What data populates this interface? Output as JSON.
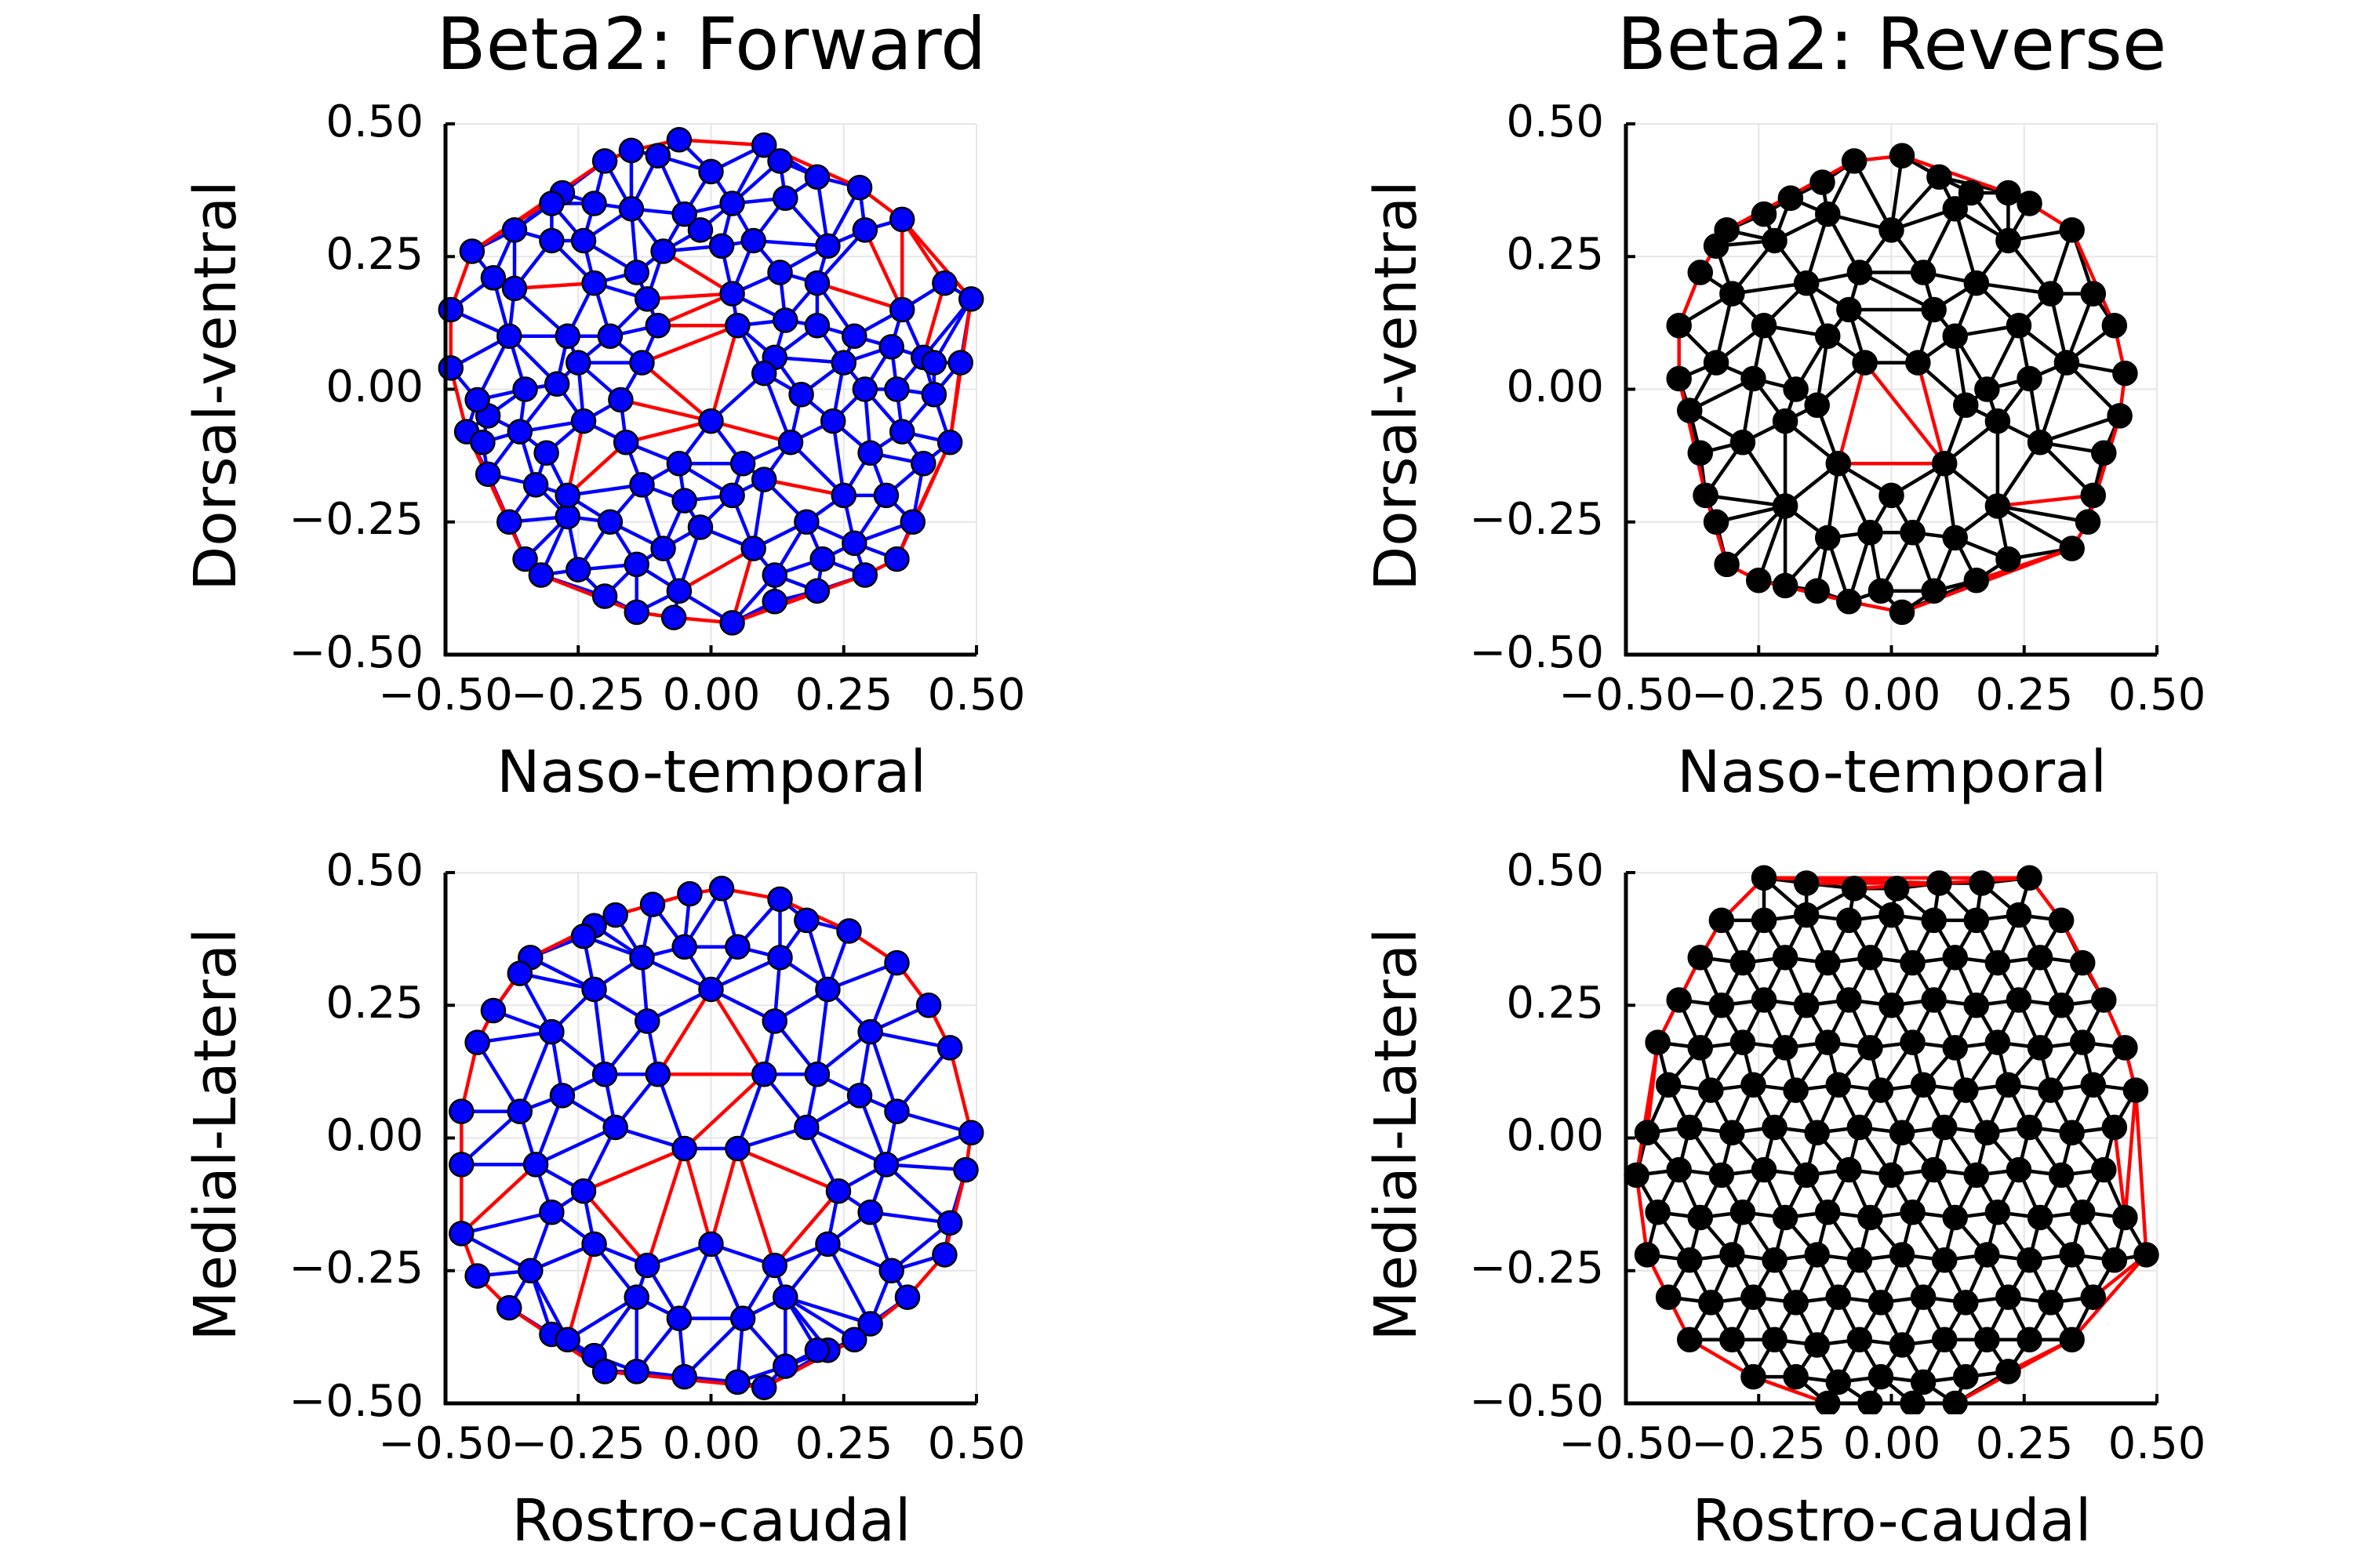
{
  "colors": {
    "boundary_edge": "#ff0000",
    "forward_edge": "#0000ff",
    "forward_node": "#0000ff",
    "reverse_edge": "#000000",
    "reverse_node": "#000000",
    "grid": "#e6e6e6"
  },
  "chart_data": [
    {
      "type": "scatter",
      "variant": "triangulated-mesh",
      "title": "Beta2: Forward",
      "xlabel": "Naso-temporal",
      "ylabel": "Dorsal-ventral",
      "xlim": [
        -0.5,
        0.5
      ],
      "ylim": [
        -0.5,
        0.5
      ],
      "xticks": [
        "−0.50",
        "−0.25",
        "0.00",
        "0.25",
        "0.50"
      ],
      "yticks": [
        "−0.50",
        "−0.25",
        "0.00",
        "0.25",
        "0.50"
      ],
      "grid": true,
      "legend": "none",
      "node_color": "blue",
      "edge_color": "blue",
      "boundary_color": "red",
      "points": {
        "x": [
          -0.06,
          0.1,
          -0.15,
          -0.1,
          0.13,
          -0.2,
          0.0,
          0.2,
          -0.28,
          0.28,
          -0.37,
          -0.3,
          0.36,
          -0.45,
          -0.41,
          0.44,
          -0.49,
          0.49,
          -0.49,
          0.47,
          -0.46,
          0.42,
          -0.42,
          0.4,
          -0.37,
          0.36,
          -0.33,
          -0.27,
          0.33,
          -0.25,
          0.27,
          -0.2,
          0.2,
          -0.14,
          0.12,
          -0.07,
          0.04,
          -0.14,
          -0.06,
          0.12,
          0.21,
          -0.02,
          -0.22,
          0.29,
          -0.3,
          -0.38,
          0.34,
          -0.42,
          0.4,
          0.42,
          -0.44,
          -0.43,
          0.45,
          -0.38,
          0.38,
          -0.35,
          0.35,
          -0.32,
          0.29,
          -0.24,
          0.22,
          -0.15,
          0.14,
          0.04,
          -0.05,
          -0.22,
          0.2,
          -0.09,
          0.02,
          0.08,
          -0.14,
          0.13,
          -0.27,
          0.27,
          -0.35,
          0.35,
          -0.36,
          0.36,
          -0.31,
          0.3,
          -0.27,
          0.25,
          -0.19,
          0.18,
          -0.09,
          0.08,
          -0.02,
          0.04,
          -0.12,
          0.14,
          -0.19,
          0.2,
          -0.25,
          0.25,
          -0.29,
          0.29,
          -0.24,
          0.23,
          -0.16,
          0.15,
          -0.06,
          0.06,
          0.0,
          -0.13,
          0.12,
          -0.17,
          0.17,
          -0.13,
          0.1,
          -0.05,
          0.04,
          -0.1,
          0.05,
          0.1
        ],
        "y": [
          0.47,
          0.46,
          0.45,
          0.44,
          0.43,
          0.43,
          0.41,
          0.4,
          0.37,
          0.38,
          0.3,
          0.35,
          0.32,
          0.26,
          0.21,
          0.2,
          0.15,
          0.17,
          0.04,
          0.05,
          -0.08,
          -0.01,
          -0.05,
          0.06,
          0.19,
          0.15,
          -0.18,
          -0.24,
          -0.2,
          -0.34,
          -0.29,
          -0.39,
          -0.38,
          -0.42,
          -0.4,
          -0.43,
          -0.44,
          -0.33,
          -0.38,
          -0.35,
          -0.32,
          0.3,
          0.35,
          0.3,
          0.28,
          0.1,
          0.08,
          -0.16,
          -0.14,
          0.05,
          -0.02,
          -0.1,
          -0.1,
          -0.25,
          -0.25,
          -0.32,
          -0.32,
          -0.35,
          -0.35,
          0.28,
          0.27,
          0.34,
          0.36,
          0.35,
          0.33,
          0.2,
          0.2,
          0.26,
          0.27,
          0.28,
          0.22,
          0.22,
          0.1,
          0.1,
          0.0,
          0.0,
          -0.08,
          -0.08,
          -0.12,
          -0.12,
          -0.2,
          -0.2,
          -0.25,
          -0.25,
          -0.3,
          -0.3,
          -0.26,
          0.18,
          0.17,
          0.13,
          0.1,
          0.12,
          0.05,
          0.05,
          0.01,
          0.0,
          -0.06,
          -0.06,
          -0.1,
          -0.1,
          -0.14,
          -0.14,
          -0.06,
          0.05,
          0.06,
          -0.02,
          -0.01,
          -0.18,
          -0.17,
          -0.21,
          -0.2,
          0.12,
          0.12,
          0.03
        ]
      }
    },
    {
      "type": "scatter",
      "variant": "triangulated-mesh",
      "title": "Beta2: Reverse",
      "xlabel": "Naso-temporal",
      "ylabel": "Dorsal-ventral",
      "xlim": [
        -0.5,
        0.5
      ],
      "ylim": [
        -0.5,
        0.5
      ],
      "xticks": [
        "−0.50",
        "−0.25",
        "0.00",
        "0.25",
        "0.50"
      ],
      "yticks": [
        "−0.50",
        "−0.25",
        "0.00",
        "0.25",
        "0.50"
      ],
      "grid": true,
      "legend": "none",
      "node_color": "black",
      "edge_color": "black",
      "boundary_color": "red",
      "points": {
        "x": [
          0.02,
          -0.07,
          0.09,
          -0.13,
          0.15,
          -0.19,
          0.22,
          -0.24,
          0.26,
          -0.31,
          -0.33,
          -0.36,
          0.34,
          0.38,
          -0.4,
          0.42,
          -0.4,
          0.44,
          -0.38,
          0.43,
          -0.36,
          0.4,
          -0.35,
          0.38,
          -0.33,
          0.37,
          -0.31,
          0.34,
          -0.25,
          0.22,
          -0.2,
          0.16,
          -0.14,
          0.08,
          -0.08,
          0.02,
          -0.02,
          -0.12,
          0.12,
          -0.2,
          0.2,
          -0.28,
          0.28,
          -0.33,
          0.33,
          -0.3,
          0.3,
          -0.22,
          0.22,
          -0.12,
          0.12,
          0.0,
          -0.06,
          0.06,
          -0.16,
          0.16,
          -0.24,
          0.24,
          -0.26,
          0.26,
          -0.2,
          0.2,
          -0.1,
          0.1,
          0.0,
          -0.04,
          0.04,
          -0.12,
          0.12,
          -0.18,
          0.18,
          -0.14,
          0.14,
          -0.05,
          0.05,
          -0.08,
          0.08
        ],
        "y": [
          0.44,
          0.43,
          0.4,
          0.39,
          0.37,
          0.36,
          0.37,
          0.33,
          0.35,
          0.3,
          0.27,
          0.22,
          0.3,
          0.18,
          0.12,
          0.12,
          0.02,
          0.03,
          -0.04,
          -0.05,
          -0.12,
          -0.12,
          -0.2,
          -0.2,
          -0.25,
          -0.25,
          -0.33,
          -0.3,
          -0.36,
          -0.32,
          -0.37,
          -0.36,
          -0.38,
          -0.38,
          -0.4,
          -0.42,
          -0.38,
          -0.28,
          -0.28,
          -0.22,
          -0.22,
          -0.1,
          -0.1,
          0.05,
          0.05,
          0.18,
          0.18,
          0.28,
          0.28,
          0.33,
          0.34,
          0.3,
          0.22,
          0.22,
          0.2,
          0.2,
          0.12,
          0.12,
          0.02,
          0.02,
          -0.06,
          -0.06,
          -0.14,
          -0.14,
          -0.2,
          -0.27,
          -0.27,
          0.1,
          0.1,
          0.0,
          0.0,
          -0.03,
          -0.03,
          0.05,
          0.05,
          0.15,
          0.15
        ]
      }
    },
    {
      "type": "scatter",
      "variant": "triangulated-mesh",
      "title": "",
      "xlabel": "Rostro-caudal",
      "ylabel": "Medial-Lateral",
      "xlim": [
        -0.5,
        0.5
      ],
      "ylim": [
        -0.5,
        0.5
      ],
      "xticks": [
        "−0.50",
        "−0.25",
        "0.00",
        "0.25",
        "0.50"
      ],
      "yticks": [
        "−0.50",
        "−0.25",
        "0.00",
        "0.25",
        "0.50"
      ],
      "grid": true,
      "legend": "none",
      "node_color": "blue",
      "edge_color": "blue",
      "boundary_color": "red",
      "points": {
        "x": [
          0.02,
          -0.04,
          0.13,
          -0.11,
          0.18,
          -0.18,
          -0.22,
          0.26,
          -0.24,
          0.35,
          -0.34,
          -0.36,
          0.41,
          -0.41,
          0.45,
          -0.44,
          0.49,
          -0.47,
          0.48,
          -0.47,
          0.45,
          -0.47,
          0.44,
          -0.44,
          0.37,
          -0.38,
          0.3,
          -0.3,
          0.22,
          -0.22,
          0.14,
          -0.14,
          0.05,
          -0.05,
          0.1,
          -0.2,
          0.2,
          -0.27,
          0.27,
          -0.34,
          0.34,
          -0.36,
          0.35,
          -0.3,
          0.3,
          -0.22,
          0.22,
          -0.13,
          0.13,
          -0.05,
          0.05,
          0.0,
          -0.12,
          0.12,
          -0.2,
          0.2,
          -0.28,
          0.28,
          -0.33,
          0.33,
          -0.3,
          0.3,
          -0.22,
          0.22,
          -0.14,
          0.14,
          -0.06,
          0.06,
          -0.1,
          0.1,
          -0.18,
          0.18,
          -0.24,
          0.24,
          -0.05,
          0.05,
          0.0,
          -0.12,
          0.12
        ],
        "y": [
          0.47,
          0.46,
          0.45,
          0.44,
          0.41,
          0.42,
          0.4,
          0.39,
          0.38,
          0.33,
          0.34,
          0.31,
          0.25,
          0.24,
          0.17,
          0.18,
          0.01,
          0.05,
          -0.06,
          -0.05,
          -0.16,
          -0.18,
          -0.22,
          -0.26,
          -0.3,
          -0.32,
          -0.35,
          -0.37,
          -0.4,
          -0.41,
          -0.43,
          -0.44,
          -0.46,
          -0.45,
          -0.47,
          -0.44,
          -0.4,
          -0.38,
          -0.38,
          -0.25,
          -0.25,
          0.05,
          0.05,
          0.2,
          0.2,
          0.28,
          0.28,
          0.34,
          0.34,
          0.36,
          0.36,
          0.28,
          0.22,
          0.22,
          0.12,
          0.12,
          0.08,
          0.08,
          -0.05,
          -0.05,
          -0.14,
          -0.14,
          -0.2,
          -0.2,
          -0.3,
          -0.3,
          -0.34,
          -0.34,
          0.12,
          0.12,
          0.02,
          0.02,
          -0.1,
          -0.1,
          -0.02,
          -0.02,
          -0.2,
          -0.24,
          -0.24
        ]
      }
    },
    {
      "type": "scatter",
      "variant": "triangulated-mesh",
      "title": "",
      "xlabel": "Rostro-caudal",
      "ylabel": "Medial-Lateral",
      "xlim": [
        -0.5,
        0.5
      ],
      "ylim": [
        -0.5,
        0.5
      ],
      "xticks": [
        "−0.50",
        "−0.25",
        "0.00",
        "0.25",
        "0.50"
      ],
      "yticks": [
        "−0.50",
        "−0.25",
        "0.00",
        "0.25",
        "0.50"
      ],
      "grid": true,
      "legend": "none",
      "node_color": "black",
      "edge_color": "black",
      "boundary_color": "red",
      "points": {
        "x": [
          -0.24,
          -0.16,
          -0.07,
          0.01,
          0.09,
          0.17,
          0.26,
          -0.32,
          -0.24,
          -0.16,
          -0.08,
          0.0,
          0.08,
          0.16,
          0.24,
          0.32,
          -0.36,
          -0.28,
          -0.2,
          -0.12,
          -0.04,
          0.04,
          0.12,
          0.2,
          0.28,
          0.36,
          -0.4,
          -0.32,
          -0.24,
          -0.16,
          -0.08,
          0.0,
          0.08,
          0.16,
          0.24,
          0.32,
          0.4,
          -0.44,
          -0.36,
          -0.28,
          -0.2,
          -0.12,
          -0.04,
          0.04,
          0.12,
          0.2,
          0.28,
          0.36,
          0.44,
          -0.42,
          -0.34,
          -0.26,
          -0.18,
          -0.1,
          -0.02,
          0.06,
          0.14,
          0.22,
          0.3,
          0.38,
          0.46,
          -0.46,
          -0.38,
          -0.3,
          -0.22,
          -0.14,
          -0.06,
          0.02,
          0.1,
          0.18,
          0.26,
          0.34,
          0.42,
          -0.48,
          -0.4,
          -0.32,
          -0.24,
          -0.16,
          -0.08,
          0.0,
          0.08,
          0.16,
          0.24,
          0.32,
          0.4,
          -0.44,
          -0.36,
          -0.28,
          -0.2,
          -0.12,
          -0.04,
          0.04,
          0.12,
          0.2,
          0.28,
          0.36,
          0.44,
          -0.46,
          -0.38,
          -0.3,
          -0.22,
          -0.14,
          -0.06,
          0.02,
          0.1,
          0.18,
          0.26,
          0.34,
          0.42,
          0.48,
          -0.42,
          -0.34,
          -0.26,
          -0.18,
          -0.1,
          -0.02,
          0.06,
          0.14,
          0.22,
          0.3,
          0.38,
          -0.38,
          -0.3,
          -0.22,
          -0.14,
          -0.06,
          0.02,
          0.1,
          0.18,
          0.26,
          0.34,
          -0.26,
          -0.18,
          -0.1,
          -0.02,
          0.06,
          0.14,
          0.22,
          -0.12,
          -0.04,
          0.04,
          0.12
        ],
        "y": [
          0.49,
          0.48,
          0.47,
          0.47,
          0.48,
          0.48,
          0.49,
          0.41,
          0.41,
          0.42,
          0.41,
          0.42,
          0.41,
          0.41,
          0.42,
          0.41,
          0.34,
          0.33,
          0.34,
          0.33,
          0.34,
          0.33,
          0.34,
          0.33,
          0.34,
          0.33,
          0.26,
          0.25,
          0.26,
          0.25,
          0.26,
          0.25,
          0.26,
          0.25,
          0.26,
          0.25,
          0.26,
          0.18,
          0.17,
          0.18,
          0.17,
          0.18,
          0.17,
          0.18,
          0.17,
          0.18,
          0.17,
          0.18,
          0.17,
          0.1,
          0.09,
          0.1,
          0.09,
          0.1,
          0.09,
          0.1,
          0.09,
          0.1,
          0.09,
          0.1,
          0.09,
          0.01,
          0.02,
          0.01,
          0.02,
          0.01,
          0.02,
          0.01,
          0.02,
          0.01,
          0.02,
          0.01,
          0.02,
          -0.07,
          -0.06,
          -0.07,
          -0.06,
          -0.07,
          -0.06,
          -0.07,
          -0.06,
          -0.07,
          -0.06,
          -0.07,
          -0.06,
          -0.14,
          -0.15,
          -0.14,
          -0.15,
          -0.14,
          -0.15,
          -0.14,
          -0.15,
          -0.14,
          -0.15,
          -0.14,
          -0.15,
          -0.22,
          -0.23,
          -0.22,
          -0.23,
          -0.22,
          -0.23,
          -0.22,
          -0.23,
          -0.22,
          -0.23,
          -0.22,
          -0.23,
          -0.22,
          -0.3,
          -0.31,
          -0.3,
          -0.31,
          -0.3,
          -0.31,
          -0.3,
          -0.31,
          -0.3,
          -0.31,
          -0.3,
          -0.38,
          -0.38,
          -0.38,
          -0.39,
          -0.38,
          -0.39,
          -0.38,
          -0.38,
          -0.38,
          -0.38,
          -0.45,
          -0.45,
          -0.46,
          -0.45,
          -0.46,
          -0.45,
          -0.44,
          -0.5,
          -0.5,
          -0.5,
          -0.5
        ]
      }
    }
  ]
}
